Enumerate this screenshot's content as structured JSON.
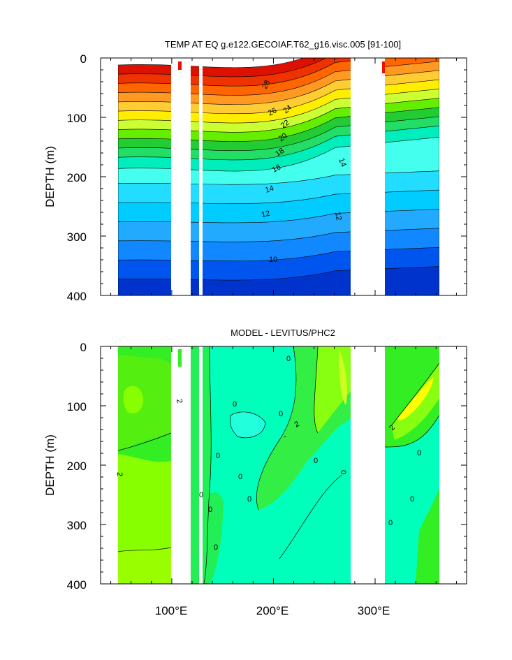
{
  "chart_data": [
    {
      "type": "heatmap",
      "title": "TEMP AT EQ g.e122.GECOIAF.T62_g16.visc.005 [91-100]",
      "ylabel": "DEPTH (m)",
      "xlim": [
        30,
        390
      ],
      "ylim": [
        0,
        400
      ],
      "y_reversed": true,
      "yticks": [
        "0",
        "100",
        "200",
        "300",
        "400"
      ],
      "xticks": [],
      "contour_labels": [
        "28",
        "26",
        "24",
        "22",
        "20",
        "18",
        "16",
        "14",
        "14",
        "12",
        "12",
        "10"
      ],
      "land_gaps_lon": [
        [
          97,
          120
        ],
        [
          130,
          133
        ],
        [
          280,
          315
        ],
        [
          370,
          390
        ]
      ],
      "depth_band_colors": [
        "#dd1100",
        "#ee3300",
        "#ff6600",
        "#ff9922",
        "#ffcc33",
        "#ffee00",
        "#ccff33",
        "#66ee00",
        "#22cc33",
        "#22dd66",
        "#00eebb",
        "#44ffee",
        "#22ddff",
        "#00ccff",
        "#22aaff",
        "#1188ff",
        "#0055ee",
        "#0033cc"
      ]
    },
    {
      "type": "heatmap",
      "title": "MODEL - LEVITUS/PHC2",
      "ylabel": "DEPTH (m)",
      "xlim": [
        30,
        390
      ],
      "ylim": [
        0,
        400
      ],
      "y_reversed": true,
      "yticks": [
        "0",
        "100",
        "200",
        "300",
        "400"
      ],
      "xticks": [
        "100°E",
        "200°E",
        "300°E"
      ],
      "contour_labels": [
        "0",
        "2",
        "0",
        "0",
        "2",
        "-",
        "0",
        "0",
        "0",
        "0",
        "2",
        "0",
        "0",
        "0",
        "2",
        "0",
        "0",
        "0",
        "0"
      ],
      "land_gaps_lon": [
        [
          97,
          120
        ],
        [
          130,
          133
        ],
        [
          280,
          315
        ],
        [
          370,
          390
        ]
      ]
    }
  ]
}
